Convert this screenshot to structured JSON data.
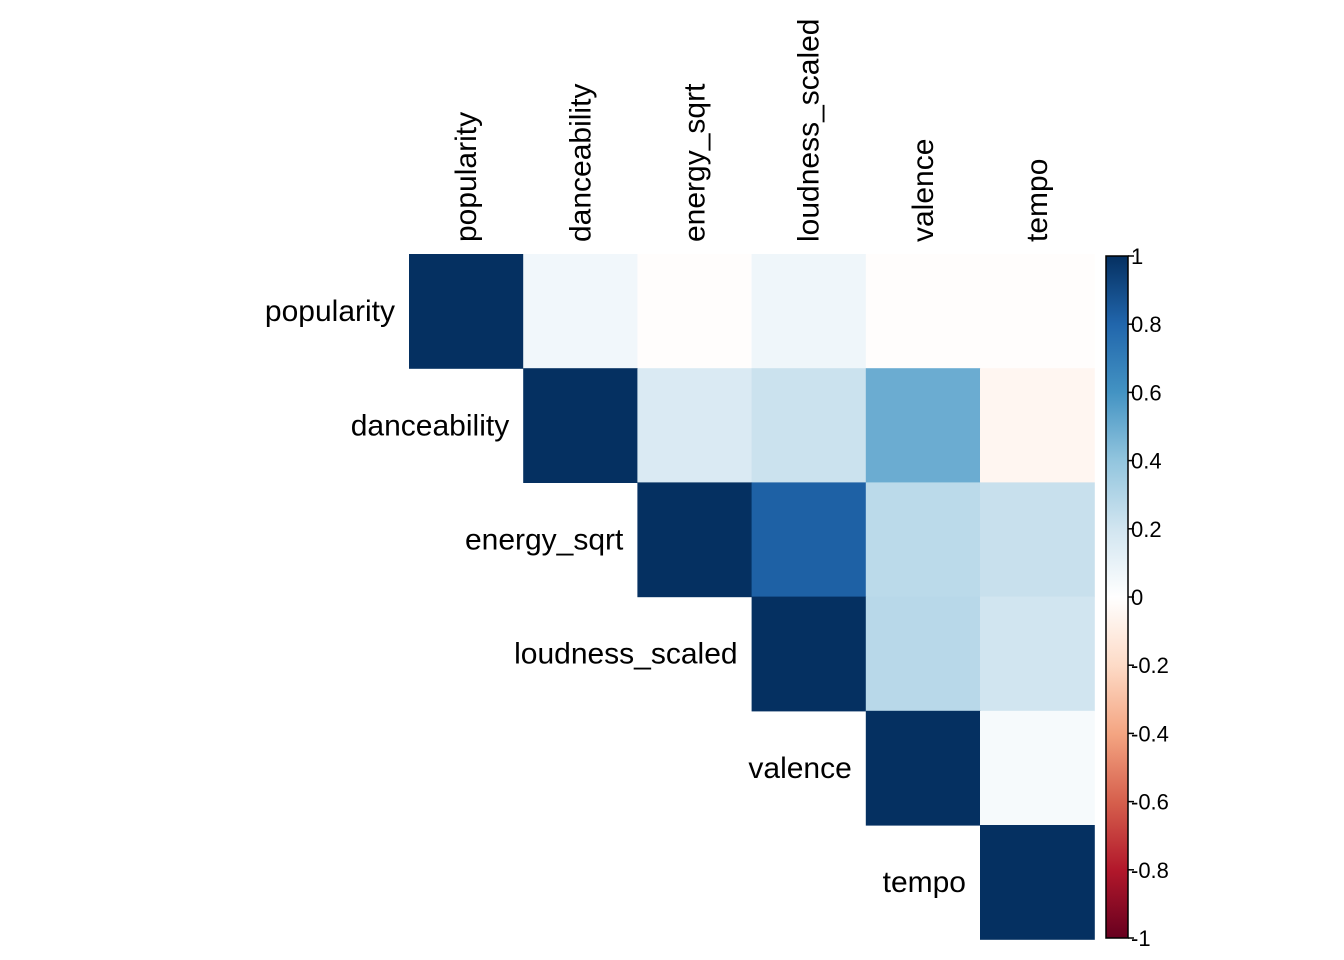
{
  "chart_data": {
    "type": "heatmap",
    "layout": "upper-triangular",
    "variables": [
      "popularity",
      "danceability",
      "energy_sqrt",
      "loudness_scaled",
      "valence",
      "tempo"
    ],
    "matrix": [
      [
        1.0,
        0.06,
        -0.01,
        0.07,
        -0.01,
        -0.01
      ],
      [
        null,
        1.0,
        0.16,
        0.22,
        0.5,
        -0.05
      ],
      [
        null,
        null,
        1.0,
        0.82,
        0.27,
        0.23
      ],
      [
        null,
        null,
        null,
        1.0,
        0.28,
        0.2
      ],
      [
        null,
        null,
        null,
        null,
        1.0,
        0.04
      ],
      [
        null,
        null,
        null,
        null,
        null,
        1.0
      ]
    ],
    "colorbar": {
      "ticks": [
        "1",
        "0.8",
        "0.6",
        "0.4",
        "0.2",
        "0",
        "-0.2",
        "-0.4",
        "-0.6",
        "-0.8",
        "-1"
      ],
      "range": [
        -1,
        1
      ]
    },
    "colors": {
      "palette": [
        "#67001F",
        "#B2182B",
        "#D6604D",
        "#F4A582",
        "#FDDBC7",
        "#FFFFFF",
        "#D1E5F0",
        "#92C5DE",
        "#4393C3",
        "#2166AC",
        "#053061"
      ]
    }
  }
}
